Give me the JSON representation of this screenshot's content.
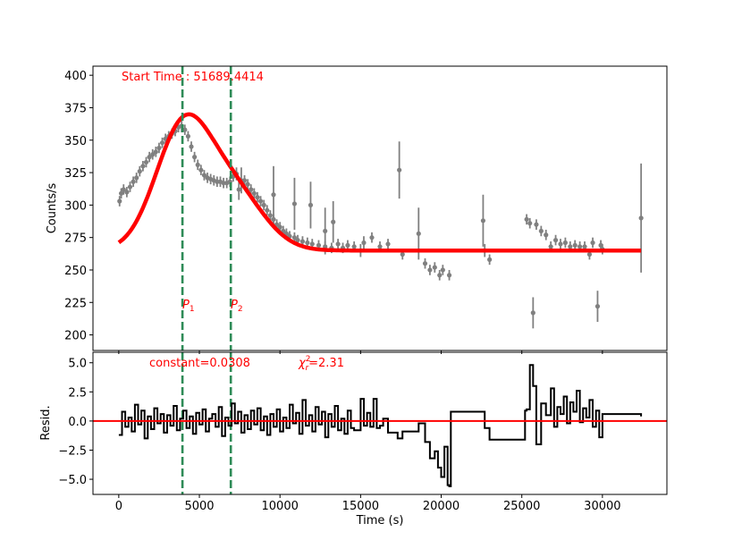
{
  "chart_data": [
    {
      "type": "scatter",
      "panel": "light-curve",
      "ylabel": "Counts/s",
      "xlim": [
        -1600,
        34000
      ],
      "ylim": [
        188,
        407
      ],
      "xticks": [
        0,
        5000,
        10000,
        15000,
        20000,
        25000,
        30000
      ],
      "yticks": [
        200,
        225,
        250,
        275,
        300,
        325,
        350,
        375,
        400
      ],
      "grid": false,
      "annotations": {
        "start_time": "Start Time : 51689.4414",
        "p1_label": "P",
        "p1_sub": "1",
        "p2_label": "P",
        "p2_sub": "2"
      },
      "vertical_lines": [
        {
          "name": "P1",
          "x": 3950,
          "color": "#2e8b57"
        },
        {
          "name": "P2",
          "x": 6950,
          "color": "#2e8b57"
        }
      ],
      "model": {
        "color": "#ff0000",
        "baseline": 265,
        "gaussians": [
          {
            "center": 3950,
            "amplitude": 91,
            "sigma": 1700
          },
          {
            "center": 7050,
            "amplitude": 45,
            "sigma": 1900
          }
        ],
        "x_range": [
          0,
          32400
        ]
      },
      "series": [
        {
          "color": "#808080",
          "points": [
            [
              50,
              303,
              4
            ],
            [
              150,
              309,
              4
            ],
            [
              300,
              312,
              4
            ],
            [
              500,
              310,
              4
            ],
            [
              700,
              314,
              4
            ],
            [
              900,
              318,
              4
            ],
            [
              1100,
              321,
              4
            ],
            [
              1300,
              326,
              4
            ],
            [
              1500,
              330,
              4
            ],
            [
              1700,
              333,
              4
            ],
            [
              1900,
              337,
              4
            ],
            [
              2100,
              339,
              4
            ],
            [
              2300,
              341,
              4
            ],
            [
              2500,
              344,
              4
            ],
            [
              2700,
              348,
              4
            ],
            [
              2900,
              351,
              4
            ],
            [
              3100,
              353,
              4
            ],
            [
              3300,
              355,
              4
            ],
            [
              3500,
              357,
              4
            ],
            [
              3700,
              360,
              4
            ],
            [
              3900,
              361,
              5
            ],
            [
              4100,
              358,
              4
            ],
            [
              4300,
              353,
              4
            ],
            [
              4500,
              345,
              4
            ],
            [
              4700,
              337,
              4
            ],
            [
              4900,
              331,
              4
            ],
            [
              5100,
              327,
              4
            ],
            [
              5300,
              323,
              4
            ],
            [
              5500,
              321,
              4
            ],
            [
              5700,
              320,
              4
            ],
            [
              5900,
              319,
              4
            ],
            [
              6100,
              318,
              4
            ],
            [
              6300,
              318,
              4
            ],
            [
              6500,
              317,
              4
            ],
            [
              6700,
              317,
              4
            ],
            [
              6900,
              318,
              4
            ],
            [
              7100,
              322,
              4
            ],
            [
              7300,
              324,
              5
            ],
            [
              7450,
              312,
              8
            ],
            [
              7600,
              319,
              10
            ],
            [
              7800,
              319,
              4
            ],
            [
              8000,
              316,
              4
            ],
            [
              8200,
              312,
              4
            ],
            [
              8400,
              309,
              4
            ],
            [
              8600,
              306,
              4
            ],
            [
              8800,
              303,
              4
            ],
            [
              9000,
              300,
              4
            ],
            [
              9200,
              296,
              4
            ],
            [
              9400,
              292,
              4
            ],
            [
              9600,
              289,
              4
            ],
            [
              9800,
              285,
              4
            ],
            [
              9600,
              308,
              22
            ],
            [
              10000,
              283,
              4
            ],
            [
              10200,
              280,
              4
            ],
            [
              10400,
              278,
              4
            ],
            [
              10600,
              276,
              4
            ],
            [
              10900,
              275,
              4
            ],
            [
              10900,
              301,
              20
            ],
            [
              11100,
              273,
              4
            ],
            [
              11400,
              272,
              4
            ],
            [
              11700,
              271,
              4
            ],
            [
              11900,
              300,
              18
            ],
            [
              12000,
              270,
              4
            ],
            [
              12400,
              269,
              4
            ],
            [
              12800,
              268,
              4
            ],
            [
              12800,
              280,
              18
            ],
            [
              13200,
              267,
              4
            ],
            [
              13300,
              287,
              16
            ],
            [
              13600,
              270,
              4
            ],
            [
              13900,
              267,
              4
            ],
            [
              14200,
              269,
              4
            ],
            [
              14600,
              268,
              4
            ],
            [
              15000,
              265,
              5
            ],
            [
              15200,
              271,
              5
            ],
            [
              15700,
              275,
              4
            ],
            [
              16200,
              268,
              4
            ],
            [
              16700,
              270,
              4
            ],
            [
              17400,
              327,
              22
            ],
            [
              17600,
              262,
              4
            ],
            [
              18600,
              278,
              20
            ],
            [
              19000,
              255,
              4
            ],
            [
              19300,
              250,
              4
            ],
            [
              19600,
              252,
              4
            ],
            [
              19900,
              246,
              4
            ],
            [
              20100,
              250,
              4
            ],
            [
              20500,
              246,
              4
            ],
            [
              22600,
              288,
              20
            ],
            [
              22700,
              265,
              5
            ],
            [
              23000,
              258,
              4
            ],
            [
              25300,
              289,
              4
            ],
            [
              25500,
              286,
              4
            ],
            [
              25700,
              217,
              12
            ],
            [
              25900,
              285,
              4
            ],
            [
              26200,
              280,
              4
            ],
            [
              26500,
              277,
              4
            ],
            [
              26800,
              268,
              4
            ],
            [
              27100,
              273,
              4
            ],
            [
              27400,
              270,
              4
            ],
            [
              27700,
              271,
              4
            ],
            [
              28000,
              268,
              4
            ],
            [
              28300,
              269,
              4
            ],
            [
              28600,
              268,
              4
            ],
            [
              28900,
              268,
              4
            ],
            [
              29200,
              262,
              4
            ],
            [
              29400,
              271,
              4
            ],
            [
              29700,
              222,
              12
            ],
            [
              29900,
              269,
              4
            ],
            [
              30000,
              266,
              4
            ],
            [
              32400,
              290,
              42
            ]
          ]
        }
      ]
    },
    {
      "type": "line",
      "panel": "residuals",
      "xlabel": "Time (s)",
      "ylabel": "Resid.",
      "xlim": [
        -1600,
        34000
      ],
      "ylim": [
        -6.3,
        5.9
      ],
      "xticks": [
        0,
        5000,
        10000,
        15000,
        20000,
        25000,
        30000
      ],
      "yticks": [
        -5.0,
        -2.5,
        0.0,
        2.5,
        5.0
      ],
      "tick_labels_y": [
        "−5.0",
        "−2.5",
        "0.0",
        "2.5",
        "5.0"
      ],
      "grid": false,
      "zero_line": {
        "y": 0,
        "color": "#ff0000"
      },
      "annotations": {
        "constant_text": "constant=0.0308",
        "chi_prefix": "χ",
        "chi_sup": "2",
        "chi_sub": "r",
        "chi_value": "=2.31"
      },
      "series": [
        {
          "color": "#000000",
          "step": true,
          "x": [
            0,
            200,
            400,
            600,
            800,
            1000,
            1200,
            1400,
            1600,
            1800,
            2000,
            2200,
            2400,
            2600,
            2800,
            3000,
            3200,
            3400,
            3600,
            3800,
            4000,
            4200,
            4400,
            4600,
            4800,
            5000,
            5200,
            5400,
            5600,
            5800,
            6000,
            6200,
            6400,
            6600,
            6800,
            7000,
            7200,
            7400,
            7600,
            7800,
            8000,
            8200,
            8400,
            8600,
            8800,
            9000,
            9200,
            9400,
            9600,
            9800,
            10000,
            10200,
            10400,
            10600,
            10800,
            11000,
            11200,
            11400,
            11600,
            11800,
            12000,
            12200,
            12400,
            12600,
            12800,
            13000,
            13200,
            13400,
            13600,
            13800,
            14000,
            14200,
            14400,
            14600,
            15000,
            15200,
            15400,
            15600,
            15800,
            16000,
            16200,
            16400,
            16700,
            17300,
            17600,
            18600,
            19000,
            19300,
            19600,
            19800,
            20000,
            20200,
            20400,
            20500,
            20600,
            22600,
            22700,
            23000,
            25200,
            25300,
            25500,
            25700,
            25900,
            26200,
            26500,
            26800,
            27000,
            27200,
            27400,
            27600,
            27800,
            28000,
            28200,
            28400,
            28600,
            28800,
            29000,
            29200,
            29400,
            29600,
            29800,
            30000,
            32400
          ],
          "y": [
            -1.2,
            0.8,
            -0.5,
            0.3,
            -0.9,
            1.4,
            -0.3,
            0.9,
            -1.5,
            0.4,
            -0.7,
            1.1,
            -0.2,
            0.6,
            -1.0,
            0.5,
            -0.4,
            1.3,
            -0.8,
            0.2,
            0.9,
            -0.6,
            0.4,
            -1.1,
            0.7,
            -0.3,
            1.0,
            -0.9,
            0.2,
            0.6,
            -0.5,
            1.2,
            -1.3,
            0.3,
            -0.4,
            1.5,
            -0.2,
            0.8,
            -1.0,
            0.5,
            -0.7,
            0.9,
            -0.3,
            1.1,
            -0.8,
            0.4,
            -1.2,
            0.6,
            -0.5,
            1.0,
            -0.9,
            0.3,
            -0.6,
            1.4,
            -0.2,
            0.7,
            -1.1,
            1.8,
            -0.4,
            0.5,
            -0.9,
            1.2,
            -0.3,
            0.8,
            -1.4,
            0.6,
            -0.5,
            1.3,
            -0.8,
            0.2,
            -1.1,
            0.9,
            -0.6,
            -0.8,
            1.9,
            -0.4,
            0.7,
            -0.5,
            1.9,
            -0.6,
            -0.4,
            0.2,
            -1.0,
            -1.5,
            -0.9,
            -0.2,
            -1.8,
            -3.2,
            -2.6,
            -4.0,
            -4.8,
            -2.2,
            -5.5,
            -5.6,
            0.8,
            0.8,
            -0.6,
            -1.6,
            0.9,
            1.0,
            4.8,
            3.0,
            -2.0,
            1.5,
            0.5,
            2.8,
            -0.5,
            1.2,
            0.6,
            2.1,
            -0.2,
            1.6,
            0.8,
            2.6,
            -0.1,
            1.1,
            0.3,
            1.8,
            -0.5,
            0.9,
            -1.4,
            0.6,
            0.4
          ]
        }
      ]
    }
  ]
}
